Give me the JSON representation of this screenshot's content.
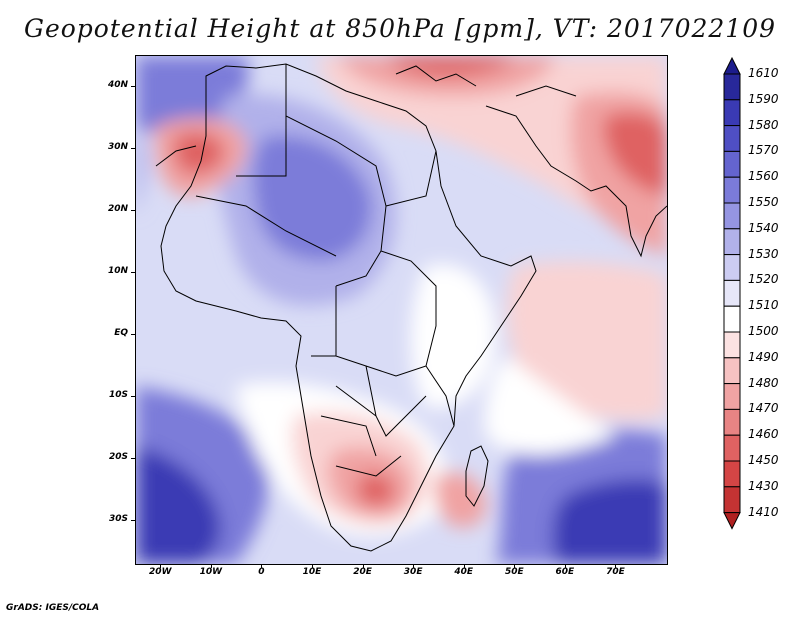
{
  "title": "Geopotential Height at 850hPa [gpm], VT: 2017022109",
  "credit": "GrADS: IGES/COLA",
  "map": {
    "region": "Africa",
    "lon_range": [
      -25,
      80
    ],
    "lat_range": [
      -37,
      45
    ],
    "lat_labels": [
      {
        "text": "40N",
        "lat": 40
      },
      {
        "text": "30N",
        "lat": 30
      },
      {
        "text": "20N",
        "lat": 20
      },
      {
        "text": "10N",
        "lat": 10
      },
      {
        "text": "EQ",
        "lat": 0
      },
      {
        "text": "10S",
        "lat": -10
      },
      {
        "text": "20S",
        "lat": -20
      },
      {
        "text": "30S",
        "lat": -30
      }
    ],
    "lon_labels": [
      {
        "text": "20W",
        "lon": -20
      },
      {
        "text": "10W",
        "lon": -10
      },
      {
        "text": "0",
        "lon": 0
      },
      {
        "text": "10E",
        "lon": 10
      },
      {
        "text": "20E",
        "lon": 20
      },
      {
        "text": "30E",
        "lon": 30
      },
      {
        "text": "40E",
        "lon": 40
      },
      {
        "text": "50E",
        "lon": 50
      },
      {
        "text": "60E",
        "lon": 60
      },
      {
        "text": "70E",
        "lon": 70
      }
    ]
  },
  "colorbar": {
    "top_value": "1610",
    "entries": [
      {
        "label": "1590",
        "color": "#28289a"
      },
      {
        "label": "1580",
        "color": "#3a3ab4"
      },
      {
        "label": "1570",
        "color": "#4f4fc4"
      },
      {
        "label": "1560",
        "color": "#6464cf"
      },
      {
        "label": "1550",
        "color": "#7b7bd9"
      },
      {
        "label": "1540",
        "color": "#9595e2"
      },
      {
        "label": "1530",
        "color": "#b1b1ea"
      },
      {
        "label": "1520",
        "color": "#ccccf2"
      },
      {
        "label": "1510",
        "color": "#e6e6f8"
      },
      {
        "label": "1500",
        "color": "#ffffff"
      },
      {
        "label": "1490",
        "color": "#fce2e2"
      },
      {
        "label": "1480",
        "color": "#f6c2c2"
      },
      {
        "label": "1470",
        "color": "#f0a3a3"
      },
      {
        "label": "1460",
        "color": "#e88484"
      },
      {
        "label": "1450",
        "color": "#df6262"
      },
      {
        "label": "1430",
        "color": "#d44545"
      },
      {
        "label": "1410",
        "color": "#c43333"
      }
    ],
    "bottom_tip_color": "#b02020",
    "top_tip_color": "#1c1c8c"
  },
  "field_colors": {
    "deep_blue": "#3a3ab4",
    "mid_blue": "#7b7bd9",
    "light_blue": "#b1b1ea",
    "pale_blue": "#d9dcf6",
    "white": "#ffffff",
    "pale_red": "#f9d3d3",
    "light_red": "#f0a3a3",
    "red": "#df6262",
    "deep_red": "#c43333"
  }
}
